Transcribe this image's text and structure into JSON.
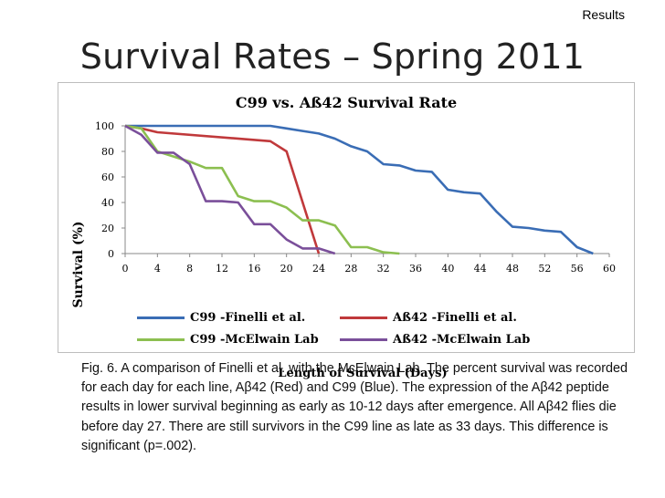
{
  "corner_label": "Results",
  "slide_title": "Survival Rates – Spring 2011",
  "chart_data": {
    "type": "line",
    "title": "C99 vs. Aß42 Survival Rate",
    "xlabel": "Length of Survival (Days)",
    "ylabel": "Survival (%)",
    "xlim": [
      0,
      60
    ],
    "ylim": [
      0,
      100
    ],
    "xticks": [
      "0",
      "4",
      "8",
      "12",
      "16",
      "20",
      "24",
      "28",
      "32",
      "36",
      "40",
      "44",
      "48",
      "52",
      "56",
      "60"
    ],
    "yticks": [
      "0",
      "20",
      "40",
      "60",
      "80",
      "100"
    ],
    "grid": false,
    "legend": "bottom",
    "series": [
      {
        "name": "C99 -Finelli et al.",
        "color": "#3a6db5",
        "points": [
          [
            0,
            100
          ],
          [
            2,
            100
          ],
          [
            18,
            100
          ],
          [
            20,
            98
          ],
          [
            22,
            96
          ],
          [
            24,
            94
          ],
          [
            26,
            90
          ],
          [
            28,
            84
          ],
          [
            30,
            80
          ],
          [
            32,
            70
          ],
          [
            34,
            69
          ],
          [
            36,
            65
          ],
          [
            38,
            64
          ],
          [
            40,
            50
          ],
          [
            42,
            48
          ],
          [
            44,
            47
          ],
          [
            46,
            33
          ],
          [
            48,
            21
          ],
          [
            50,
            20
          ],
          [
            52,
            18
          ],
          [
            54,
            17
          ],
          [
            56,
            5
          ],
          [
            58,
            0
          ]
        ]
      },
      {
        "name": "Aß42 -Finelli et al.",
        "color": "#c0393b",
        "points": [
          [
            0,
            100
          ],
          [
            2,
            98
          ],
          [
            4,
            95
          ],
          [
            18,
            88
          ],
          [
            20,
            80
          ],
          [
            24,
            0
          ]
        ]
      },
      {
        "name": "C99 -McElwain Lab",
        "color": "#8cbf50",
        "points": [
          [
            0,
            100
          ],
          [
            2,
            98
          ],
          [
            4,
            80
          ],
          [
            8,
            72
          ],
          [
            10,
            67
          ],
          [
            12,
            67
          ],
          [
            14,
            45
          ],
          [
            16,
            41
          ],
          [
            18,
            41
          ],
          [
            20,
            36
          ],
          [
            22,
            26
          ],
          [
            24,
            26
          ],
          [
            26,
            22
          ],
          [
            28,
            5
          ],
          [
            30,
            5
          ],
          [
            32,
            1
          ],
          [
            34,
            0
          ]
        ]
      },
      {
        "name": "Aß42 -McElwain Lab",
        "color": "#7a4f9a",
        "points": [
          [
            0,
            100
          ],
          [
            2,
            93
          ],
          [
            4,
            79
          ],
          [
            6,
            79
          ],
          [
            8,
            70
          ],
          [
            10,
            41
          ],
          [
            12,
            41
          ],
          [
            14,
            40
          ],
          [
            16,
            23
          ],
          [
            18,
            23
          ],
          [
            20,
            11
          ],
          [
            22,
            4
          ],
          [
            24,
            4
          ],
          [
            26,
            0
          ]
        ]
      }
    ]
  },
  "caption": "Fig. 6. A comparison of Finelli et al. with the McElwain Lab.  The percent survival was recorded for each day for each line, Aβ42 (Red) and C99 (Blue).  The expression of the Aβ42 peptide results in lower survival beginning as early as 10-12 days after emergence.  All Aβ42 flies die before day 27.  There are still survivors in the C99 line as late as 33 days.   This difference is significant (p=.002)."
}
